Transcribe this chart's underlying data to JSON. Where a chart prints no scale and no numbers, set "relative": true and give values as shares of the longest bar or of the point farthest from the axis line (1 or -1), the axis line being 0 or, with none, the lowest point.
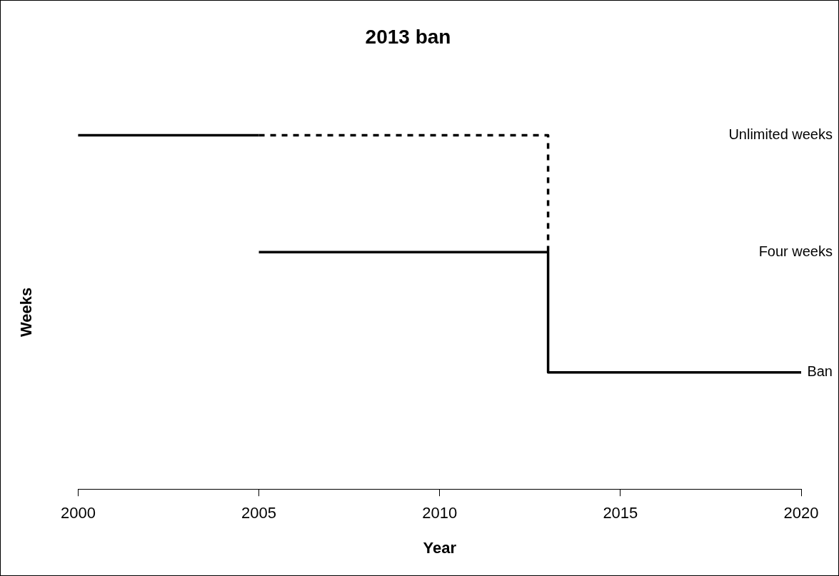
{
  "chart_data": {
    "type": "line",
    "title": "2013 ban",
    "xlabel": "Year",
    "ylabel": "Weeks",
    "relative": true,
    "xlim": [
      2000,
      2020
    ],
    "xticks": [
      2000,
      2005,
      2010,
      2015,
      2020
    ],
    "grid": false,
    "legend": false,
    "marker": "none",
    "series": [
      {
        "color": "#000000",
        "line_style": "solid",
        "x": [
          2000,
          2005
        ],
        "values": [
          1,
          1
        ]
      },
      {
        "color": "#000000",
        "line_style": "dashed",
        "x": [
          2005,
          2013,
          2013
        ],
        "values": [
          1,
          1,
          0.67
        ]
      },
      {
        "color": "#000000",
        "line_style": "solid",
        "x": [
          2005,
          2013,
          2013,
          2020
        ],
        "values": [
          0.67,
          0.67,
          0.33,
          0.33
        ]
      }
    ],
    "annotations": [
      "Unlimited weeks",
      "Four weeks",
      "Ban"
    ]
  }
}
